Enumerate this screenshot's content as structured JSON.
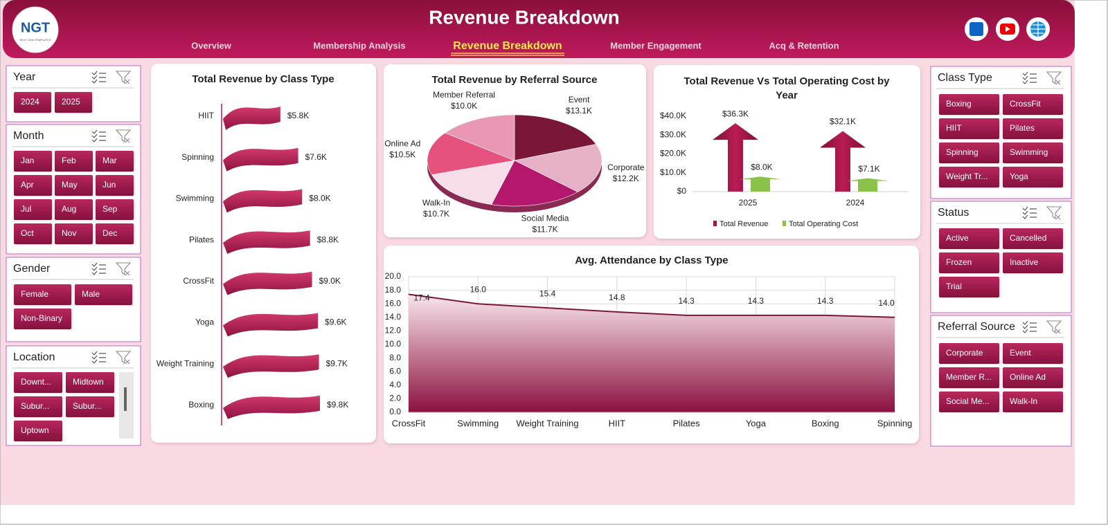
{
  "header": {
    "logo": "NGT",
    "logo_tagline": "NEXT GEN TEMPLATES",
    "title": "Revenue Breakdown"
  },
  "nav": {
    "items": [
      "Overview",
      "Membership Analysis",
      "Revenue Breakdown",
      "Member Engagement",
      "Acq & Retention"
    ],
    "active_index": 2
  },
  "slicers": {
    "left": [
      {
        "title": "Year",
        "items": [
          "2024",
          "2025"
        ]
      },
      {
        "title": "Month",
        "items": [
          "Jan",
          "Feb",
          "Mar",
          "Apr",
          "May",
          "Jun",
          "Jul",
          "Aug",
          "Sep",
          "Oct",
          "Nov",
          "Dec"
        ]
      },
      {
        "title": "Gender",
        "items": [
          "Female",
          "Male",
          "Non-Binary"
        ]
      },
      {
        "title": "Location",
        "items": [
          "Downt...",
          "Midtown",
          "Subur...",
          "Subur...",
          "Uptown"
        ]
      }
    ],
    "right": [
      {
        "title": "Class Type",
        "items": [
          "Boxing",
          "CrossFit",
          "HIIT",
          "Pilates",
          "Spinning",
          "Swimming",
          "Weight Tr...",
          "Yoga"
        ]
      },
      {
        "title": "Status",
        "items": [
          "Active",
          "Cancelled",
          "Frozen",
          "Inactive",
          "Trial"
        ]
      },
      {
        "title": "Referral Source",
        "items": [
          "Corporate",
          "Event",
          "Member R...",
          "Online Ad",
          "Social Me...",
          "Walk-In"
        ]
      }
    ]
  },
  "chart_data": [
    {
      "type": "flagbar",
      "title": "Total Revenue  by Class Type",
      "categories": [
        "HIIT",
        "Spinning",
        "Swimming",
        "Pilates",
        "CrossFit",
        "Yoga",
        "Weight Training",
        "Boxing"
      ],
      "values": [
        5.8,
        7.6,
        8.0,
        8.8,
        9.0,
        9.6,
        9.7,
        9.8
      ],
      "value_labels": [
        "$5.8K",
        "$7.6K",
        "$8.0K",
        "$8.8K",
        "$9.0K",
        "$9.6K",
        "$9.7K",
        "$9.8K"
      ],
      "color": "#b01c52"
    },
    {
      "type": "pie",
      "title": "Total Revenue by Referral Source",
      "categories": [
        "Event",
        "Corporate",
        "Social Media",
        "Walk-In",
        "Online Ad",
        "Member Referral"
      ],
      "values": [
        13.1,
        12.2,
        11.7,
        10.7,
        10.5,
        10.0
      ],
      "value_labels": [
        "$13.1K",
        "$12.2K",
        "$11.7K",
        "$10.7K",
        "$10.5K",
        "$10.0K"
      ],
      "colors": [
        "#7a1638",
        "#e6b0c6",
        "#b3186c",
        "#f6dde8",
        "#e6527e",
        "#e898b4"
      ]
    },
    {
      "type": "arrowcolumn",
      "title": "Total Revenue Vs Total Operating Cost by Year",
      "categories": [
        "2025",
        "2024"
      ],
      "series": [
        {
          "name": "Total Revenue",
          "color": "#a3164a",
          "values": [
            36300,
            32100
          ],
          "value_labels": [
            "$36.3K",
            "$32.1K"
          ]
        },
        {
          "name": "Total Operating Cost",
          "color": "#8bc34a",
          "values": [
            8000,
            7100
          ],
          "value_labels": [
            "$8.0K",
            "$7.1K"
          ]
        }
      ],
      "ylim": [
        0,
        40000
      ],
      "yticks": [
        {
          "value": 0,
          "label": "$0"
        },
        {
          "value": 10000,
          "label": "$10.0K"
        },
        {
          "value": 20000,
          "label": "$20.0K"
        },
        {
          "value": 30000,
          "label": "$30.0K"
        },
        {
          "value": 40000,
          "label": "$40.0K"
        }
      ],
      "legend": "bottom"
    },
    {
      "type": "area",
      "title": "Avg. Attendance by Class Type",
      "categories": [
        "CrossFit",
        "Swimming",
        "Weight Training",
        "HIIT",
        "Pilates",
        "Yoga",
        "Boxing",
        "Spinning"
      ],
      "values": [
        17.4,
        16.0,
        15.4,
        14.8,
        14.3,
        14.3,
        14.3,
        14.0
      ],
      "value_labels": [
        "17.4",
        "16.0",
        "15.4",
        "14.8",
        "14.3",
        "14.3",
        "14.3",
        "14.0"
      ],
      "color": "#7a1638",
      "ylim": [
        0,
        20
      ],
      "yticks": [
        {
          "value": 0,
          "label": "0.0"
        },
        {
          "value": 2,
          "label": "2.0"
        },
        {
          "value": 4,
          "label": "4.0"
        },
        {
          "value": 6,
          "label": "6.0"
        },
        {
          "value": 8,
          "label": "8.0"
        },
        {
          "value": 10,
          "label": "10.0"
        },
        {
          "value": 12,
          "label": "12.0"
        },
        {
          "value": 14,
          "label": "14.0"
        },
        {
          "value": 16,
          "label": "16.0"
        },
        {
          "value": 18,
          "label": "18.0"
        },
        {
          "value": 20,
          "label": "20.0"
        }
      ],
      "grid": true
    }
  ]
}
